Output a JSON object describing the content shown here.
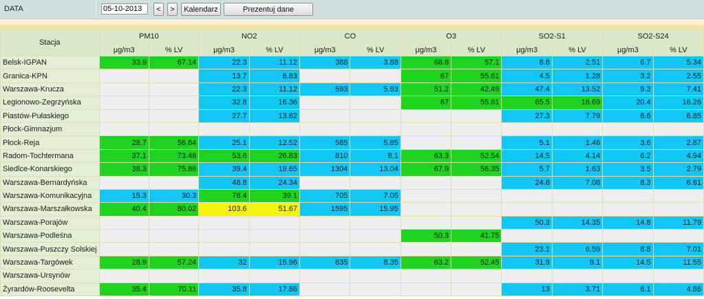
{
  "header": {
    "data_label": "DATA",
    "date_value": "05-10-2013",
    "prev_label": "<",
    "next_label": ">",
    "calendar_label": "Kalendarz",
    "present_label": "Prezentuj dane"
  },
  "table": {
    "station_header": "Stacja",
    "groups": [
      "PM10",
      "NO2",
      "CO",
      "O3",
      "SO2-S1",
      "SO2-S24"
    ],
    "units": [
      "µg/m3",
      "% LV"
    ],
    "colors": {
      "g": "#1fd41f",
      "b": "#10c7f5",
      "y": "#f5f50a",
      "empty": "#efefef"
    },
    "rows": [
      {
        "station": "Belsk-IGPAN",
        "cells": [
          [
            "33.9",
            "g"
          ],
          [
            "67.14",
            "g"
          ],
          [
            "22.3",
            "b"
          ],
          [
            "11.12",
            "b"
          ],
          [
            "388",
            "b"
          ],
          [
            "3.88",
            "b"
          ],
          [
            "68.8",
            "g"
          ],
          [
            "57.1",
            "g"
          ],
          [
            "8.8",
            "b"
          ],
          [
            "2.51",
            "b"
          ],
          [
            "6.7",
            "b"
          ],
          [
            "5.34",
            "b"
          ]
        ]
      },
      {
        "station": "Granica-KPN",
        "cells": [
          [
            "",
            ""
          ],
          [
            "",
            ""
          ],
          [
            "13.7",
            "b"
          ],
          [
            "6.83",
            "b"
          ],
          [
            "",
            ""
          ],
          [
            "",
            ""
          ],
          [
            "67",
            "g"
          ],
          [
            "55.61",
            "g"
          ],
          [
            "4.5",
            "b"
          ],
          [
            "1.28",
            "b"
          ],
          [
            "3.2",
            "b"
          ],
          [
            "2.55",
            "b"
          ]
        ]
      },
      {
        "station": "Warszawa-Krucza",
        "cells": [
          [
            "",
            ""
          ],
          [
            "",
            ""
          ],
          [
            "22.3",
            "b"
          ],
          [
            "11.12",
            "b"
          ],
          [
            "593",
            "b"
          ],
          [
            "5.93",
            "b"
          ],
          [
            "51.2",
            "g"
          ],
          [
            "42.49",
            "g"
          ],
          [
            "47.4",
            "b"
          ],
          [
            "13.52",
            "b"
          ],
          [
            "9.3",
            "b"
          ],
          [
            "7.41",
            "b"
          ]
        ]
      },
      {
        "station": "Legionowo-Zegrzyńska",
        "cells": [
          [
            "",
            ""
          ],
          [
            "",
            ""
          ],
          [
            "32.8",
            "b"
          ],
          [
            "16.36",
            "b"
          ],
          [
            "",
            ""
          ],
          [
            "",
            ""
          ],
          [
            "67",
            "g"
          ],
          [
            "55.61",
            "g"
          ],
          [
            "65.5",
            "g"
          ],
          [
            "18.69",
            "g"
          ],
          [
            "20.4",
            "b"
          ],
          [
            "16.26",
            "b"
          ]
        ]
      },
      {
        "station": "Piastów-Pułaskiego",
        "cells": [
          [
            "",
            ""
          ],
          [
            "",
            ""
          ],
          [
            "27.7",
            "b"
          ],
          [
            "13.82",
            "b"
          ],
          [
            "",
            ""
          ],
          [
            "",
            ""
          ],
          [
            "",
            ""
          ],
          [
            "",
            ""
          ],
          [
            "27.3",
            "b"
          ],
          [
            "7.79",
            "b"
          ],
          [
            "8.6",
            "b"
          ],
          [
            "6.85",
            "b"
          ]
        ]
      },
      {
        "station": "Płock-Gimnazjum",
        "cells": [
          [
            "",
            ""
          ],
          [
            "",
            ""
          ],
          [
            "",
            ""
          ],
          [
            "",
            ""
          ],
          [
            "",
            ""
          ],
          [
            "",
            ""
          ],
          [
            "",
            ""
          ],
          [
            "",
            ""
          ],
          [
            "",
            ""
          ],
          [
            "",
            ""
          ],
          [
            "",
            ""
          ],
          [
            "",
            ""
          ]
        ]
      },
      {
        "station": "Płock-Reja",
        "cells": [
          [
            "28.7",
            "g"
          ],
          [
            "56.84",
            "g"
          ],
          [
            "25.1",
            "b"
          ],
          [
            "12.52",
            "b"
          ],
          [
            "585",
            "b"
          ],
          [
            "5.85",
            "b"
          ],
          [
            "",
            ""
          ],
          [
            "",
            ""
          ],
          [
            "5.1",
            "b"
          ],
          [
            "1.46",
            "b"
          ],
          [
            "3.6",
            "b"
          ],
          [
            "2.87",
            "b"
          ]
        ]
      },
      {
        "station": "Radom-Tochtermana",
        "cells": [
          [
            "37.1",
            "g"
          ],
          [
            "73.48",
            "g"
          ],
          [
            "53.8",
            "g"
          ],
          [
            "26.83",
            "g"
          ],
          [
            "810",
            "b"
          ],
          [
            "8.1",
            "b"
          ],
          [
            "63.3",
            "g"
          ],
          [
            "52.54",
            "g"
          ],
          [
            "14.5",
            "b"
          ],
          [
            "4.14",
            "b"
          ],
          [
            "6.2",
            "b"
          ],
          [
            "4.94",
            "b"
          ]
        ]
      },
      {
        "station": "Siedlce-Konarskiego",
        "cells": [
          [
            "38.3",
            "g"
          ],
          [
            "75.86",
            "g"
          ],
          [
            "39.4",
            "b"
          ],
          [
            "19.65",
            "b"
          ],
          [
            "1304",
            "b"
          ],
          [
            "13.04",
            "b"
          ],
          [
            "67.9",
            "g"
          ],
          [
            "56.35",
            "g"
          ],
          [
            "5.7",
            "b"
          ],
          [
            "1.63",
            "b"
          ],
          [
            "3.5",
            "b"
          ],
          [
            "2.79",
            "b"
          ]
        ]
      },
      {
        "station": "Warszawa-Bernardyńska",
        "cells": [
          [
            "",
            ""
          ],
          [
            "",
            ""
          ],
          [
            "48.8",
            "b"
          ],
          [
            "24.34",
            "b"
          ],
          [
            "",
            ""
          ],
          [
            "",
            ""
          ],
          [
            "",
            ""
          ],
          [
            "",
            ""
          ],
          [
            "24.8",
            "b"
          ],
          [
            "7.08",
            "b"
          ],
          [
            "8.3",
            "b"
          ],
          [
            "6.61",
            "b"
          ]
        ]
      },
      {
        "station": "Warszawa-Komunikacyjna",
        "cells": [
          [
            "15.3",
            "b"
          ],
          [
            "30.3",
            "b"
          ],
          [
            "78.4",
            "g"
          ],
          [
            "39.1",
            "g"
          ],
          [
            "705",
            "b"
          ],
          [
            "7.05",
            "b"
          ],
          [
            "",
            ""
          ],
          [
            "",
            ""
          ],
          [
            "",
            ""
          ],
          [
            "",
            ""
          ],
          [
            "",
            ""
          ],
          [
            "",
            ""
          ]
        ]
      },
      {
        "station": "Warszawa-Marszałkowska",
        "cells": [
          [
            "40.4",
            "g"
          ],
          [
            "80.02",
            "g"
          ],
          [
            "103.6",
            "y"
          ],
          [
            "51.67",
            "y"
          ],
          [
            "1595",
            "b"
          ],
          [
            "15.95",
            "b"
          ],
          [
            "",
            ""
          ],
          [
            "",
            ""
          ],
          [
            "",
            ""
          ],
          [
            "",
            ""
          ],
          [
            "",
            ""
          ],
          [
            "",
            ""
          ]
        ]
      },
      {
        "station": "Warszawa-Porajów",
        "cells": [
          [
            "",
            ""
          ],
          [
            "",
            ""
          ],
          [
            "",
            ""
          ],
          [
            "",
            ""
          ],
          [
            "",
            ""
          ],
          [
            "",
            ""
          ],
          [
            "",
            ""
          ],
          [
            "",
            ""
          ],
          [
            "50.3",
            "b"
          ],
          [
            "14.35",
            "b"
          ],
          [
            "14.8",
            "b"
          ],
          [
            "11.79",
            "b"
          ]
        ]
      },
      {
        "station": "Warszawa-Podleśna",
        "cells": [
          [
            "",
            ""
          ],
          [
            "",
            ""
          ],
          [
            "",
            ""
          ],
          [
            "",
            ""
          ],
          [
            "",
            ""
          ],
          [
            "",
            ""
          ],
          [
            "50.3",
            "g"
          ],
          [
            "41.75",
            "g"
          ],
          [
            "",
            ""
          ],
          [
            "",
            ""
          ],
          [
            "",
            ""
          ],
          [
            "",
            ""
          ]
        ]
      },
      {
        "station": "Warszawa-Puszczy Solskiej",
        "cells": [
          [
            "",
            ""
          ],
          [
            "",
            ""
          ],
          [
            "",
            ""
          ],
          [
            "",
            ""
          ],
          [
            "",
            ""
          ],
          [
            "",
            ""
          ],
          [
            "",
            ""
          ],
          [
            "",
            ""
          ],
          [
            "23.1",
            "b"
          ],
          [
            "6.59",
            "b"
          ],
          [
            "8.8",
            "b"
          ],
          [
            "7.01",
            "b"
          ]
        ]
      },
      {
        "station": "Warszawa-Targówek",
        "cells": [
          [
            "28.9",
            "g"
          ],
          [
            "57.24",
            "g"
          ],
          [
            "32",
            "b"
          ],
          [
            "15.96",
            "b"
          ],
          [
            "835",
            "b"
          ],
          [
            "8.35",
            "b"
          ],
          [
            "63.2",
            "g"
          ],
          [
            "52.45",
            "g"
          ],
          [
            "31.9",
            "b"
          ],
          [
            "9.1",
            "b"
          ],
          [
            "14.5",
            "b"
          ],
          [
            "11.55",
            "b"
          ]
        ]
      },
      {
        "station": "Warszawa-Ursynów",
        "cells": [
          [
            "",
            ""
          ],
          [
            "",
            ""
          ],
          [
            "",
            ""
          ],
          [
            "",
            ""
          ],
          [
            "",
            ""
          ],
          [
            "",
            ""
          ],
          [
            "",
            ""
          ],
          [
            "",
            ""
          ],
          [
            "",
            ""
          ],
          [
            "",
            ""
          ],
          [
            "",
            ""
          ],
          [
            "",
            ""
          ]
        ]
      },
      {
        "station": "Żyrardów-Roosevelta",
        "cells": [
          [
            "35.4",
            "g"
          ],
          [
            "70.11",
            "g"
          ],
          [
            "35.8",
            "b"
          ],
          [
            "17.86",
            "b"
          ],
          [
            "",
            ""
          ],
          [
            "",
            ""
          ],
          [
            "",
            ""
          ],
          [
            "",
            ""
          ],
          [
            "13",
            "b"
          ],
          [
            "3.71",
            "b"
          ],
          [
            "6.1",
            "b"
          ],
          [
            "4.86",
            "b"
          ]
        ]
      }
    ]
  }
}
